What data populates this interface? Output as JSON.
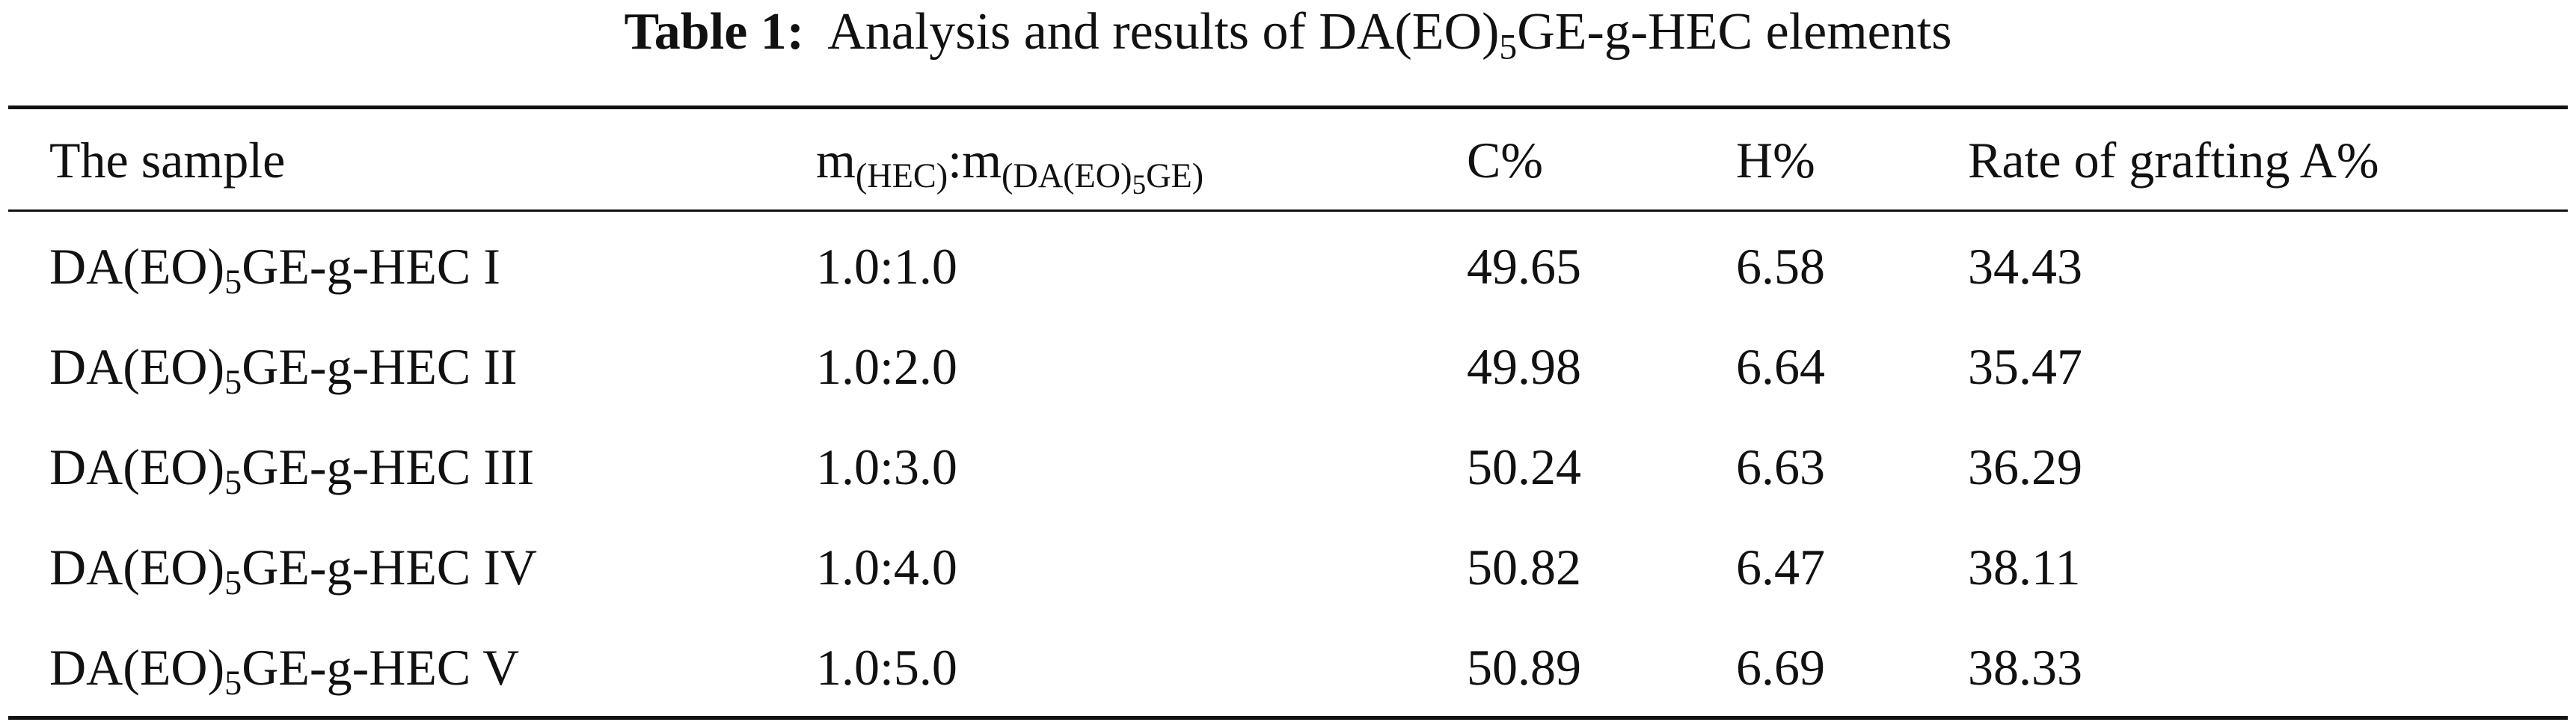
{
  "title": {
    "label": "Table 1:",
    "text": "Analysis and results of DA(EO)",
    "sub": "5",
    "text_end": "GE-g-HEC elements"
  },
  "table": {
    "header": [
      {
        "text": "The sample"
      },
      {
        "text": "m",
        "sub": "(HEC)",
        "text2": ":m",
        "sub2": "(DA(EO)",
        "subsub": "5",
        "sub2_end": "GE)"
      },
      {
        "text": "C%"
      },
      {
        "text": "H%"
      },
      {
        "text": "Rate of grafting A%"
      }
    ],
    "rows": [
      [
        {
          "text": "DA(EO)",
          "sub": "5",
          "text_end": "GE-g-HEC I"
        },
        "1.0:1.0",
        "49.65",
        "6.58",
        "34.43"
      ],
      [
        {
          "text": "DA(EO)",
          "sub": "5",
          "text_end": "GE-g-HEC II"
        },
        "1.0:2.0",
        "49.98",
        "6.64",
        "35.47"
      ],
      [
        {
          "text": "DA(EO)",
          "sub": "5",
          "text_end": "GE-g-HEC III"
        },
        "1.0:3.0",
        "50.24",
        "6.63",
        "36.29"
      ],
      [
        {
          "text": "DA(EO)",
          "sub": "5",
          "text_end": "GE-g-HEC IV"
        },
        "1.0:4.0",
        "50.82",
        "6.47",
        "38.11"
      ],
      [
        {
          "text": "DA(EO)",
          "sub": "5",
          "text_end": "GE-g-HEC V"
        },
        "1.0:5.0",
        "50.89",
        "6.69",
        "38.33"
      ]
    ]
  }
}
